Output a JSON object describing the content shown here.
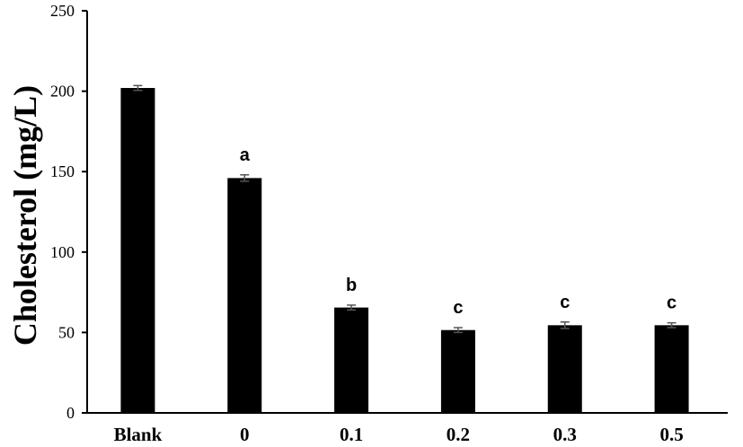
{
  "chart_data": {
    "type": "bar",
    "title": "",
    "xlabel": "",
    "ylabel": "Cholesterol  (mg/L)",
    "ylim": [
      0,
      250
    ],
    "yticks": [
      0,
      50,
      100,
      150,
      200,
      250
    ],
    "grid": false,
    "legend": "none",
    "categories": [
      "Blank",
      "0",
      "0.1",
      "0.2",
      "0.3",
      "0.5"
    ],
    "values": [
      202,
      146,
      65.5,
      51.5,
      54.5,
      54.5
    ],
    "errors": [
      1.5,
      2.0,
      1.5,
      1.5,
      2.0,
      1.5
    ],
    "significance": [
      "",
      "a",
      "b",
      "c",
      "c",
      "c"
    ],
    "bar_color": "#000000",
    "error_color": "#555555"
  }
}
